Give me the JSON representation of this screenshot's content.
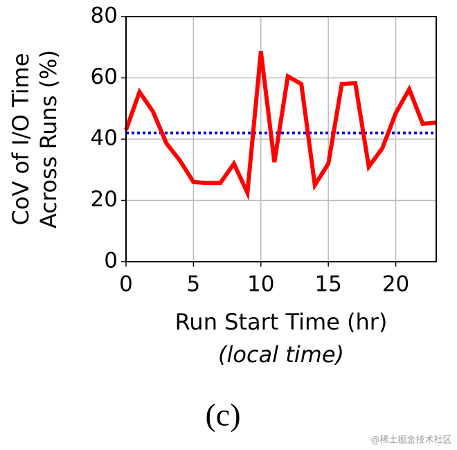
{
  "chart_data": {
    "type": "line",
    "ylabel": [
      "CoV of I/O Time",
      "Across Runs (%)"
    ],
    "xlabel": "Run Start Time (hr)",
    "xlabel_note": "(local time)",
    "caption": "(c)",
    "watermark": "@稀土掘金技术社区",
    "x": [
      0,
      1,
      2,
      3,
      4,
      5,
      6,
      7,
      8,
      9,
      10,
      11,
      12,
      13,
      14,
      15,
      16,
      17,
      18,
      19,
      20,
      21,
      22,
      23
    ],
    "series": [
      {
        "color": "#ff0000",
        "values": [
          43,
          55.4,
          49,
          38.6,
          33,
          26,
          25.7,
          25.7,
          32,
          22.5,
          68.7,
          32.5,
          60.5,
          58,
          25,
          32,
          58,
          58.3,
          31,
          37,
          48.5,
          56.3,
          45,
          45.4
        ]
      }
    ],
    "hline": {
      "value": 42,
      "color": "#0000dd",
      "style": "dotted"
    },
    "xlim": [
      0,
      23
    ],
    "xticks": [
      0,
      5,
      10,
      15,
      20
    ],
    "ylim": [
      0,
      80
    ],
    "yticks": [
      0,
      20,
      40,
      60,
      80
    ],
    "grid": true
  }
}
